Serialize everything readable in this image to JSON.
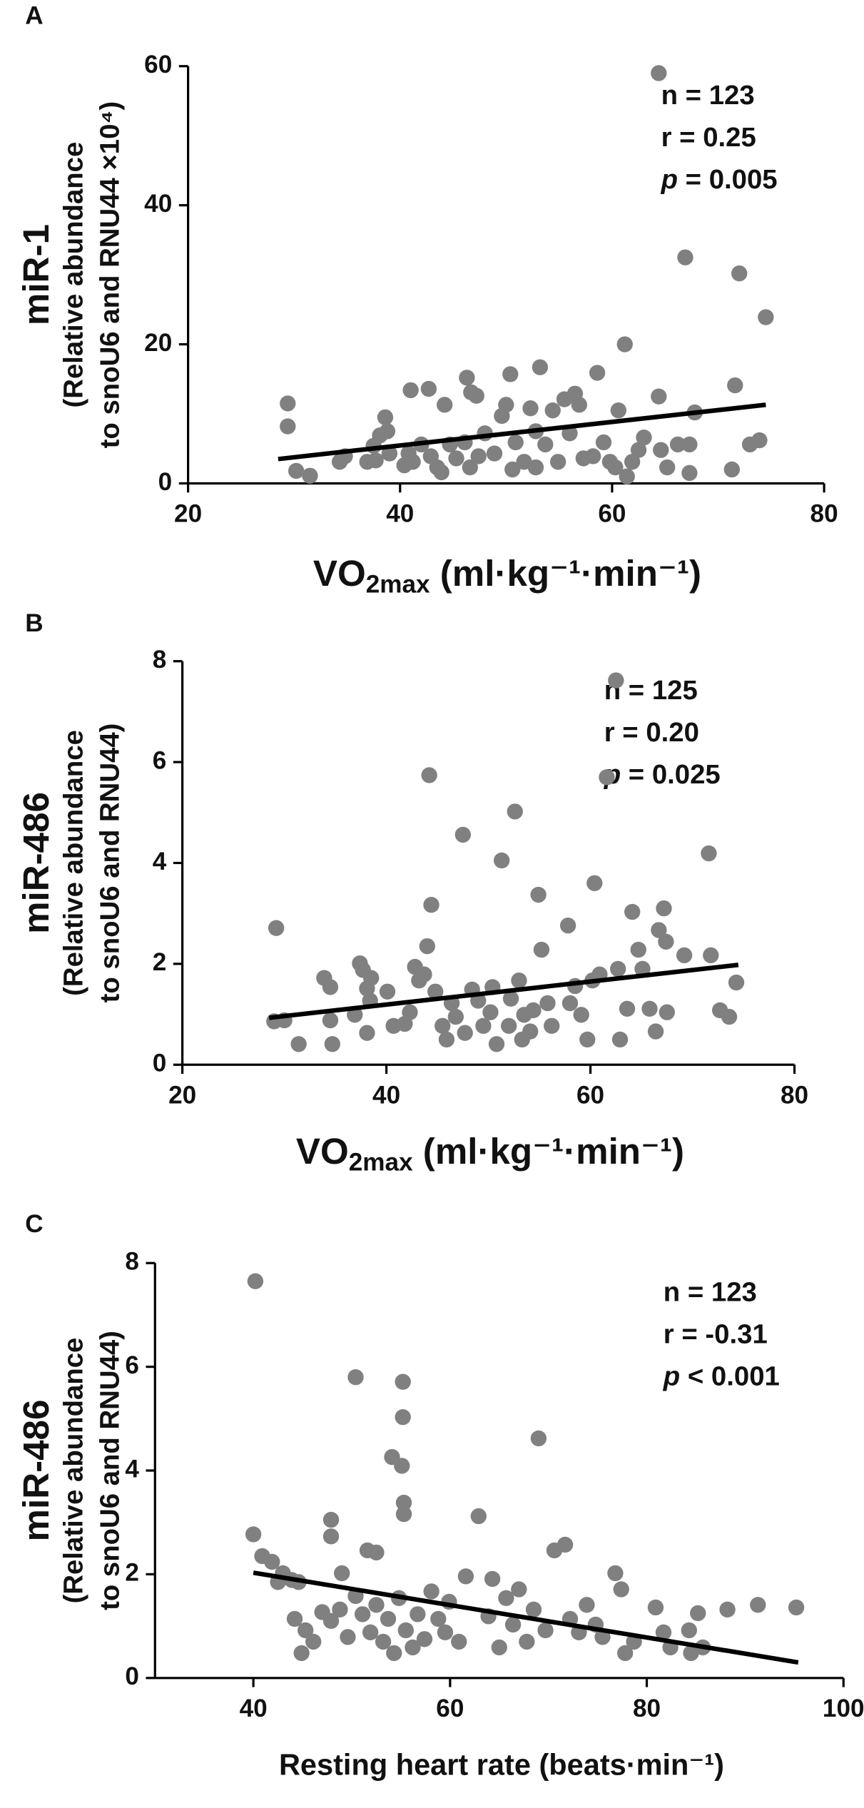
{
  "chart_data": [
    {
      "type": "scatter",
      "panel": "A",
      "y_label": [
        "miR-1",
        "(Relative abundance",
        "to snoU6 and RNU44 ×10⁴)"
      ],
      "x_label": [
        "VO",
        "2max",
        " (ml·kg⁻¹·min⁻¹)"
      ],
      "stats": [
        "n = 123",
        "r = 0.25",
        "p = 0.005"
      ],
      "color": "#808080",
      "xlim": [
        20,
        80
      ],
      "xticks": [
        20,
        40,
        60,
        80
      ],
      "ylim": [
        0,
        60
      ],
      "yticks": [
        0,
        20,
        40,
        60
      ],
      "x": [
        29.4,
        29.4,
        30.2,
        31.5,
        34.3,
        34.8,
        36.9,
        37.5,
        38.1,
        38.6,
        38.8,
        37.7,
        39,
        41,
        42.7,
        44.2,
        46.3,
        46.7,
        47.2,
        40.8,
        41.2,
        42,
        42.9,
        43.5,
        43.9,
        44.7,
        45.3,
        46.1,
        46.6,
        48,
        48.9,
        49.6,
        50,
        50.4,
        50.9,
        51.7,
        52.3,
        52.8,
        53.2,
        53.7,
        54.4,
        54.9,
        55.5,
        56,
        56.5,
        56.9,
        57.3,
        58.2,
        58.6,
        59.2,
        59.8,
        60.3,
        60.6,
        61.2,
        61.4,
        61.9,
        62.5,
        63,
        64.4,
        64.6,
        65.2,
        66.2,
        66.9,
        67.3,
        67.8,
        67.3,
        64.4,
        72,
        71.6,
        71.3,
        73,
        73.9,
        74.5,
        50.6,
        52.8,
        47.4,
        40.4
      ],
      "values": [
        11.5,
        8.2,
        1.8,
        1.1,
        3.1,
        3.9,
        3.1,
        5.4,
        6.9,
        9.5,
        7.5,
        3.3,
        4.3,
        13.4,
        13.6,
        11.3,
        15.2,
        13.1,
        12.6,
        4.3,
        3.1,
        5.6,
        3.9,
        2.3,
        1.6,
        5.6,
        3.6,
        5.9,
        2.3,
        7.2,
        4.3,
        9.7,
        11.3,
        15.7,
        5.9,
        3.1,
        10.8,
        7.5,
        16.7,
        5.6,
        10.5,
        3.1,
        12.1,
        7.2,
        12.9,
        11.3,
        3.6,
        3.9,
        15.9,
        5.9,
        3.1,
        2.3,
        10.5,
        20,
        1,
        3.1,
        4.8,
        6.6,
        12.5,
        4.8,
        2.3,
        5.6,
        32.5,
        1.5,
        10.2,
        5.6,
        59,
        30.2,
        14.1,
        2,
        5.6,
        6.2,
        23.9,
        2,
        2.3,
        3.9,
        2.6
      ],
      "fit_line": {
        "x": [
          28.5,
          74.5
        ],
        "y": [
          3.5,
          11.3
        ]
      }
    },
    {
      "type": "scatter",
      "panel": "B",
      "y_label": [
        "miR-486",
        "(Relative abundance",
        "to snoU6 and RNU44)"
      ],
      "x_label": [
        "VO",
        "2max",
        " (ml·kg⁻¹·min⁻¹)"
      ],
      "stats": [
        "n = 125",
        "r = 0.20",
        "p = 0.025"
      ],
      "color": "#808080",
      "xlim": [
        20,
        80
      ],
      "xticks": [
        20,
        40,
        60,
        80
      ],
      "ylim": [
        0,
        8
      ],
      "yticks": [
        0,
        2,
        4,
        6,
        8
      ],
      "x": [
        29.2,
        29,
        30,
        31.4,
        33.9,
        34.5,
        34.5,
        34.7,
        36.9,
        37.4,
        37.7,
        38.1,
        38.5,
        38.4,
        38.1,
        40.1,
        40.7,
        41.8,
        42.3,
        42.8,
        43.2,
        43.7,
        44,
        44.2,
        44.4,
        44.8,
        45.5,
        45.9,
        46.4,
        46.8,
        47.5,
        47.7,
        48.4,
        49,
        49.5,
        50.2,
        50.4,
        50.8,
        51.3,
        52.6,
        52.2,
        53,
        53.5,
        54.4,
        54.9,
        55.2,
        55.8,
        56.2,
        57.8,
        58,
        58.5,
        59.1,
        59.7,
        60.2,
        60.4,
        60.9,
        61.6,
        62.5,
        62.7,
        62.9,
        63.6,
        64.1,
        64.7,
        65.1,
        65.8,
        66.4,
        66.7,
        67.2,
        67.4,
        67.5,
        69.2,
        71.6,
        71.8,
        72.7,
        73.6,
        74.3,
        52,
        53.3,
        54.1
      ],
      "values": [
        2.71,
        0.86,
        0.88,
        0.41,
        1.72,
        1.54,
        0.88,
        0.41,
        0.99,
        2.01,
        1.88,
        1.51,
        1.72,
        1.27,
        0.63,
        1.45,
        0.77,
        0.81,
        1.04,
        1.94,
        1.67,
        1.79,
        2.35,
        5.74,
        3.17,
        1.45,
        0.77,
        0.5,
        1.22,
        0.95,
        4.56,
        0.63,
        1.49,
        1.27,
        0.77,
        1.04,
        1.54,
        0.41,
        4.05,
        5.02,
        1.31,
        1.67,
        0.99,
        1.08,
        3.37,
        2.28,
        1.22,
        0.77,
        2.76,
        1.22,
        1.56,
        0.99,
        0.5,
        1.67,
        3.6,
        1.79,
        5.7,
        7.62,
        1.9,
        0.5,
        1.11,
        3.03,
        2.28,
        1.9,
        1.11,
        0.66,
        2.67,
        3.1,
        2.44,
        1.04,
        2.17,
        4.19,
        2.17,
        1.08,
        0.95,
        1.63,
        0.77,
        0.5,
        0.66
      ],
      "fit_line": {
        "x": [
          28.5,
          74.5
        ],
        "y": [
          0.93,
          1.98
        ]
      }
    },
    {
      "type": "scatter",
      "panel": "C",
      "y_label": [
        "miR-486",
        "(Relative abundance",
        "to snoU6 and RNU44)"
      ],
      "x_label": [
        "Resting heart rate (beats·min⁻¹)"
      ],
      "stats": [
        "n = 123",
        "r = -0.31",
        "p < 0.001"
      ],
      "color": "#808080",
      "xlim": [
        30,
        100
      ],
      "xticks": [
        40,
        60,
        80,
        100
      ],
      "ylim": [
        0,
        8
      ],
      "yticks": [
        0,
        2,
        4,
        6,
        8
      ],
      "x": [
        40.2,
        40,
        40.9,
        41.9,
        42.5,
        43,
        43.9,
        44.6,
        47.9,
        47.9,
        50.4,
        51.6,
        52.5,
        54.1,
        55.1,
        55.2,
        55.2,
        55.3,
        55.3,
        47,
        47.9,
        48.8,
        49.6,
        50.4,
        51.1,
        51.9,
        52.5,
        53.2,
        53.7,
        54.3,
        54.8,
        55.5,
        56.2,
        56.7,
        57.4,
        58.1,
        58.8,
        59.5,
        59.9,
        60.9,
        61.6,
        62.9,
        63.9,
        64.3,
        65,
        65.7,
        66.4,
        67,
        67.8,
        68.5,
        69,
        69.7,
        70.6,
        71.7,
        72.2,
        73.1,
        73.9,
        74.8,
        75.5,
        76.8,
        77.4,
        77.8,
        78.7,
        80.9,
        81.7,
        82.4,
        84.3,
        84.5,
        85.2,
        85.7,
        88.2,
        91.3,
        95.2,
        44.2,
        45.3,
        46.1,
        44.9,
        49
      ],
      "values": [
        7.65,
        2.77,
        2.35,
        2.24,
        1.85,
        2.02,
        1.89,
        1.85,
        3.05,
        2.73,
        5.8,
        2.46,
        2.42,
        4.26,
        4.09,
        5.71,
        5.03,
        3.38,
        3.16,
        1.27,
        1.1,
        1.32,
        0.79,
        1.58,
        1.23,
        0.88,
        1.41,
        0.7,
        1.14,
        0.48,
        1.54,
        0.92,
        0.59,
        1.23,
        0.75,
        1.67,
        1.14,
        0.88,
        1.47,
        0.7,
        1.96,
        3.12,
        1.19,
        1.91,
        0.59,
        1.54,
        1.03,
        1.71,
        0.7,
        1.32,
        4.62,
        0.92,
        2.46,
        2.57,
        1.14,
        0.88,
        1.41,
        1.03,
        0.79,
        2.02,
        1.71,
        0.48,
        0.7,
        1.36,
        0.88,
        0.59,
        0.92,
        0.48,
        1.25,
        0.59,
        1.32,
        1.41,
        1.36,
        1.14,
        0.92,
        0.7,
        0.48,
        2.02
      ],
      "fit_line": {
        "x": [
          40,
          95.4
        ],
        "y": [
          2.03,
          0.3
        ]
      }
    }
  ]
}
